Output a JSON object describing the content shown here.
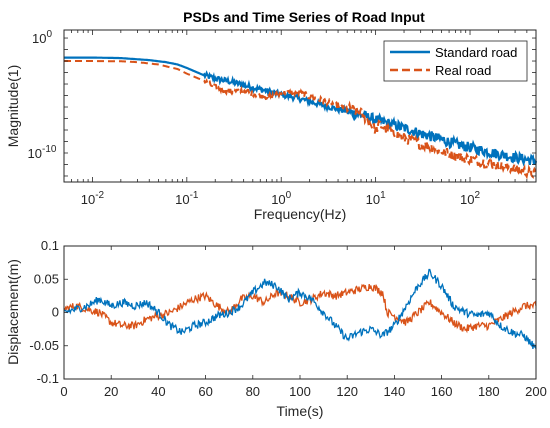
{
  "figure": {
    "title": "PSDs and Time Series of Road Input"
  },
  "colors": {
    "standard": "#0072BD",
    "real": "#D95319",
    "axis": "#262626",
    "background": "#ffffff"
  },
  "chart_data": [
    {
      "type": "line",
      "title": "PSDs and Time Series of Road Input",
      "xlabel": "Frequency(Hz)",
      "ylabel": "Magnitude(1)",
      "x_scale": "log",
      "y_scale": "log",
      "xlim": [
        0.005,
        500
      ],
      "ylim": [
        3e-13,
        5
      ],
      "x_ticks": [
        {
          "base": "10",
          "exp": "-2",
          "value": 0.01
        },
        {
          "base": "10",
          "exp": "-1",
          "value": 0.1
        },
        {
          "base": "10",
          "exp": "0",
          "value": 1
        },
        {
          "base": "10",
          "exp": "1",
          "value": 10
        },
        {
          "base": "10",
          "exp": "2",
          "value": 100
        }
      ],
      "y_ticks": [
        {
          "base": "10",
          "exp": "0",
          "value": 1
        },
        {
          "base": "10",
          "exp": "-10",
          "value": 1e-10
        }
      ],
      "grid": false,
      "legend_position": "top-right",
      "series": [
        {
          "name": "Standard road",
          "style": "solid",
          "x": [
            0.005,
            0.01,
            0.02,
            0.04,
            0.06,
            0.08,
            0.1,
            0.15,
            0.2,
            0.3,
            0.5,
            0.7,
            1,
            1.5,
            2,
            3,
            5,
            7,
            10,
            15,
            20,
            30,
            50,
            70,
            100,
            200,
            300,
            500
          ],
          "y": [
            0.02,
            0.02,
            0.018,
            0.012,
            0.008,
            0.005,
            0.0025,
            0.0006,
            0.0003,
            0.00015,
            5e-05,
            2.5e-05,
            1.2e-05,
            6e-06,
            3e-06,
            1.2e-06,
            4e-07,
            2e-07,
            8e-08,
            3e-08,
            1.5e-08,
            5e-09,
            1.5e-09,
            6e-10,
            3e-10,
            8e-11,
            4e-11,
            2e-11
          ]
        },
        {
          "name": "Real road",
          "style": "dashed",
          "x": [
            0.005,
            0.01,
            0.02,
            0.03,
            0.05,
            0.08,
            0.1,
            0.15,
            0.2,
            0.3,
            0.4,
            0.5,
            0.7,
            1,
            1.5,
            2,
            3,
            5,
            7,
            9,
            10,
            11,
            15,
            20,
            30,
            50,
            70,
            100,
            200,
            300,
            500
          ],
          "y": [
            0.01,
            0.01,
            0.0095,
            0.008,
            0.005,
            0.002,
            0.0008,
            0.0002,
            5e-05,
            2e-05,
            3e-05,
            1.5e-05,
            8e-06,
            1.5e-05,
            2e-05,
            8e-06,
            3e-06,
            8e-07,
            3e-07,
            3e-08,
            1e-08,
            3e-08,
            6e-09,
            2e-09,
            6e-10,
            1.5e-10,
            6e-11,
            3e-11,
            8e-12,
            4e-12,
            1.5e-12
          ]
        }
      ]
    },
    {
      "type": "line",
      "title": "",
      "xlabel": "Time(s)",
      "ylabel": "Displacement(m)",
      "xlim": [
        0,
        200
      ],
      "ylim": [
        -0.1,
        0.1
      ],
      "x_ticks": [
        0,
        20,
        40,
        60,
        80,
        100,
        120,
        140,
        160,
        180,
        200
      ],
      "y_ticks": [
        {
          "label": "0.1",
          "value": 0.1
        },
        {
          "label": "0.05",
          "value": 0.05
        },
        {
          "label": "0",
          "value": 0
        },
        {
          "label": "-0.05",
          "value": -0.05
        },
        {
          "label": "-0.1",
          "value": -0.1
        }
      ],
      "grid": false,
      "series": [
        {
          "name": "Standard road",
          "x": [
            0,
            5,
            10,
            15,
            20,
            25,
            30,
            35,
            40,
            45,
            50,
            55,
            60,
            65,
            70,
            75,
            80,
            85,
            90,
            95,
            100,
            105,
            110,
            115,
            120,
            125,
            130,
            135,
            140,
            145,
            150,
            155,
            160,
            165,
            170,
            175,
            180,
            185,
            190,
            195,
            200
          ],
          "y": [
            0,
            0.005,
            0.01,
            0.02,
            0.01,
            0.015,
            0.01,
            0.015,
            0.0,
            -0.02,
            -0.03,
            -0.02,
            -0.015,
            -0.005,
            0.0,
            0.01,
            0.03,
            0.045,
            0.04,
            0.02,
            0.03,
            0.02,
            0.0,
            -0.02,
            -0.04,
            -0.03,
            -0.025,
            -0.035,
            -0.02,
            0.01,
            0.04,
            0.06,
            0.04,
            0.01,
            0.0,
            -0.005,
            0.0,
            -0.02,
            -0.03,
            -0.035,
            -0.055
          ]
        },
        {
          "name": "Real road",
          "x": [
            0,
            5,
            10,
            15,
            20,
            25,
            30,
            35,
            40,
            45,
            50,
            55,
            60,
            65,
            70,
            75,
            80,
            85,
            90,
            95,
            100,
            105,
            110,
            115,
            120,
            125,
            130,
            135,
            137,
            140,
            145,
            150,
            155,
            160,
            165,
            170,
            175,
            180,
            185,
            190,
            195,
            200
          ],
          "y": [
            0.005,
            0.01,
            0.005,
            0.0,
            -0.015,
            -0.02,
            -0.02,
            -0.01,
            -0.005,
            0.0,
            0.01,
            0.02,
            0.025,
            0.01,
            0.0,
            0.02,
            0.025,
            0.015,
            0.03,
            0.025,
            0.015,
            0.02,
            0.03,
            0.025,
            0.03,
            0.035,
            0.04,
            0.03,
            0.0,
            -0.005,
            -0.015,
            0.0,
            0.015,
            0.0,
            -0.015,
            -0.025,
            -0.02,
            -0.02,
            -0.01,
            0.0,
            0.01,
            0.01
          ]
        }
      ]
    }
  ]
}
